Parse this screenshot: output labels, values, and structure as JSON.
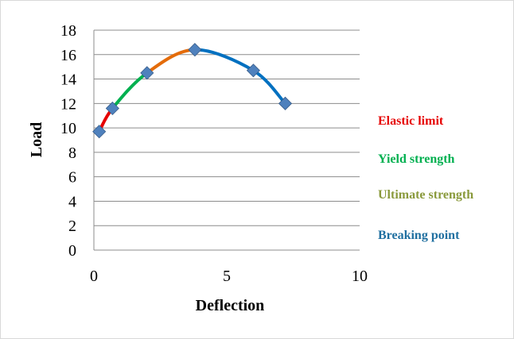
{
  "chart_data": {
    "type": "line",
    "title": "",
    "xlabel": "Deflection",
    "ylabel": "Load",
    "xlim": [
      0,
      10
    ],
    "ylim": [
      0,
      18
    ],
    "x_ticks": [
      "0",
      "5",
      "10"
    ],
    "y_ticks": [
      "0",
      "2",
      "4",
      "6",
      "8",
      "10",
      "12",
      "14",
      "16",
      "18"
    ],
    "grid": "horizontal",
    "legend_position": "right",
    "points": [
      {
        "x": 0.2,
        "y": 9.7
      },
      {
        "x": 0.7,
        "y": 11.6
      },
      {
        "x": 2.0,
        "y": 14.5
      },
      {
        "x": 3.8,
        "y": 16.4
      },
      {
        "x": 6.0,
        "y": 14.7
      },
      {
        "x": 7.2,
        "y": 12.0
      }
    ],
    "marker_color": "#4f81bd",
    "series": [
      {
        "name": "Elastic limit",
        "color": "#e60000",
        "points": [
          {
            "x": 0.2,
            "y": 9.7
          },
          {
            "x": 0.7,
            "y": 11.6
          }
        ]
      },
      {
        "name": "Yield strength",
        "color": "#00b050",
        "points": [
          {
            "x": 0.7,
            "y": 11.6
          },
          {
            "x": 2.0,
            "y": 14.5
          }
        ]
      },
      {
        "name": "Ultimate strength",
        "color": "#e46c0a",
        "points": [
          {
            "x": 2.0,
            "y": 14.5
          },
          {
            "x": 3.8,
            "y": 16.4
          }
        ]
      },
      {
        "name": "Breaking point",
        "color": "#0070c0",
        "points": [
          {
            "x": 3.8,
            "y": 16.4
          },
          {
            "x": 6.0,
            "y": 14.7
          },
          {
            "x": 7.2,
            "y": 12.0
          }
        ]
      }
    ],
    "legend": [
      {
        "label": "Elastic limit",
        "color": "#e60000"
      },
      {
        "label": "Yield strength",
        "color": "#00b050"
      },
      {
        "label": "Ultimate strength",
        "color": "#8a9a3c"
      },
      {
        "label": "Breaking point",
        "color": "#1f6fa0"
      }
    ]
  }
}
